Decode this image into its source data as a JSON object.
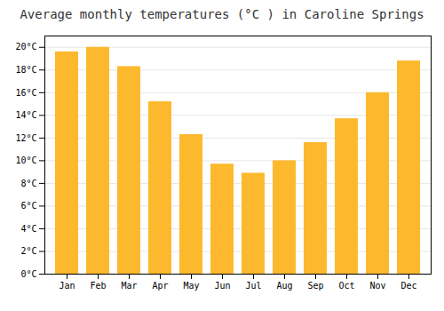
{
  "chart_data": {
    "type": "bar",
    "title": "Average monthly temperatures (°C ) in Caroline Springs",
    "categories": [
      "Jan",
      "Feb",
      "Mar",
      "Apr",
      "May",
      "Jun",
      "Jul",
      "Aug",
      "Sep",
      "Oct",
      "Nov",
      "Dec"
    ],
    "values": [
      19.6,
      20.0,
      18.3,
      15.2,
      12.3,
      9.7,
      8.9,
      10.0,
      11.6,
      13.7,
      16.0,
      18.8
    ],
    "color": "#FDB92E",
    "ylim": [
      0,
      21
    ],
    "yticks": [
      {
        "value": 0,
        "label": "0°C"
      },
      {
        "value": 2,
        "label": "2°C"
      },
      {
        "value": 4,
        "label": "4°C"
      },
      {
        "value": 6,
        "label": "6°C"
      },
      {
        "value": 8,
        "label": "8°C"
      },
      {
        "value": 10,
        "label": "10°C"
      },
      {
        "value": 12,
        "label": "12°C"
      },
      {
        "value": 14,
        "label": "14°C"
      },
      {
        "value": 16,
        "label": "16°C"
      },
      {
        "value": 18,
        "label": "18°C"
      },
      {
        "value": 20,
        "label": "20°C"
      }
    ],
    "grid": true
  }
}
